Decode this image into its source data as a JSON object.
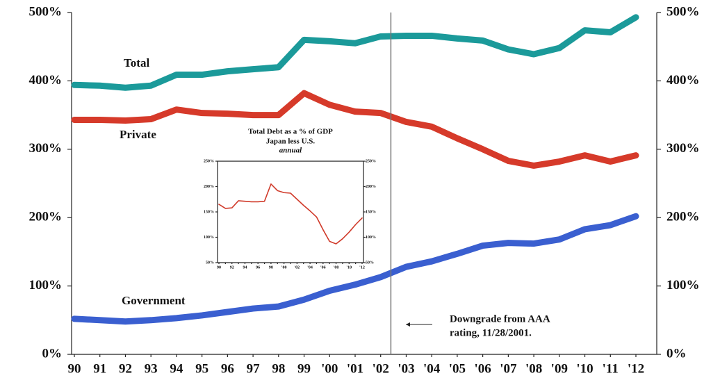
{
  "chart_data": [
    {
      "type": "line",
      "categories": [
        "90",
        "91",
        "92",
        "93",
        "94",
        "95",
        "96",
        "97",
        "98",
        "99",
        "'00",
        "'01",
        "'02",
        "'03",
        "'04",
        "'05",
        "'06",
        "'07",
        "'08",
        "'09",
        "'10",
        "'11",
        "'12"
      ],
      "series": [
        {
          "name": "Total",
          "color": "#1b9a9a",
          "values": [
            394,
            393,
            390,
            393,
            409,
            409,
            414,
            417,
            420,
            460,
            458,
            455,
            465,
            466,
            466,
            462,
            459,
            446,
            439,
            448,
            474,
            471,
            493
          ]
        },
        {
          "name": "Private",
          "color": "#d63a2a",
          "values": [
            343,
            343,
            342,
            344,
            358,
            353,
            352,
            350,
            350,
            382,
            365,
            355,
            353,
            340,
            333,
            316,
            300,
            283,
            276,
            282,
            291,
            282,
            291
          ]
        },
        {
          "name": "Government",
          "color": "#3a5fd0",
          "values": [
            52,
            50,
            48,
            50,
            53,
            57,
            62,
            67,
            70,
            80,
            93,
            102,
            113,
            128,
            136,
            147,
            159,
            163,
            162,
            168,
            183,
            189,
            202
          ]
        }
      ],
      "ylim": [
        0,
        500
      ],
      "yticks": [
        {
          "value": 0,
          "label": "0%"
        },
        {
          "value": 100,
          "label": "100%"
        },
        {
          "value": 200,
          "label": "200%"
        },
        {
          "value": 300,
          "label": "300%"
        },
        {
          "value": 400,
          "label": "400%"
        },
        {
          "value": 500,
          "label": "500%"
        }
      ],
      "mirror_y_axis": true,
      "annotation": [
        "Downgrade from AAA",
        "rating, 11/28/2001."
      ]
    },
    {
      "type": "line",
      "title": "Total Debt as a % of GDP",
      "subtitle": "Japan less U.S.",
      "note": "annual",
      "categories": [
        "90",
        null,
        "92",
        null,
        "94",
        null,
        "96",
        null,
        "98",
        null,
        "'00",
        null,
        "'02",
        null,
        "'04",
        null,
        "'06",
        null,
        "'08",
        null,
        "'10",
        null,
        "'12"
      ],
      "series": [
        {
          "name": "Japan less U.S.",
          "color": "#d03a2a",
          "values": [
            165,
            157,
            158,
            172,
            171,
            170,
            170,
            171,
            205,
            192,
            188,
            187,
            175,
            163,
            152,
            140,
            115,
            92,
            87,
            97,
            110,
            125,
            138
          ]
        }
      ],
      "ylim": [
        50,
        250
      ],
      "yticks": [
        {
          "value": 50,
          "label": "50%"
        },
        {
          "value": 100,
          "label": "100%"
        },
        {
          "value": 150,
          "label": "150%"
        },
        {
          "value": 200,
          "label": "200%"
        },
        {
          "value": 250,
          "label": "250%"
        }
      ],
      "mirror_y_axis": true
    }
  ]
}
